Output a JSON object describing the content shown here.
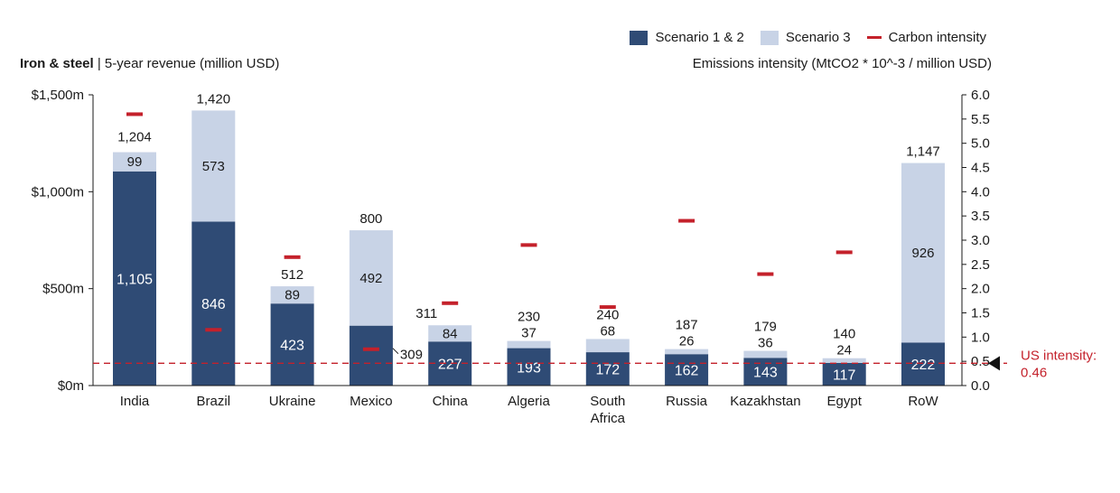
{
  "legend": {
    "s12_label": "Scenario 1 & 2",
    "s3_label": "Scenario 3",
    "carbon_label": "Carbon intensity"
  },
  "header": {
    "title_bold": "Iron & steel",
    "title_sep": " | ",
    "title_rest": "5-year revenue (million USD)",
    "right_axis_title": "Emissions intensity (MtCO2 * 10^-3 / million USD)"
  },
  "colors": {
    "s12": "#2f4b75",
    "s3": "#c8d3e6",
    "carbon": "#c4212b",
    "us_line": "#c4212b"
  },
  "chart_data": {
    "type": "bar",
    "stacked": true,
    "categories": [
      "India",
      "Brazil",
      "Ukraine",
      "Mexico",
      "China",
      "Algeria",
      "South Africa",
      "Russia",
      "Kazakhstan",
      "Egypt",
      "RoW"
    ],
    "category_lines": [
      [
        "India"
      ],
      [
        "Brazil"
      ],
      [
        "Ukraine"
      ],
      [
        "Mexico"
      ],
      [
        "China"
      ],
      [
        "Algeria"
      ],
      [
        "South",
        "Africa"
      ],
      [
        "Russia"
      ],
      [
        "Kazakhstan"
      ],
      [
        "Egypt"
      ],
      [
        "RoW"
      ]
    ],
    "series": [
      {
        "name": "Scenario 1 & 2",
        "values": [
          1105,
          846,
          423,
          309,
          227,
          193,
          172,
          162,
          143,
          117,
          222
        ],
        "labels": [
          "1,105",
          "846",
          "423",
          "309",
          "227",
          "193",
          "172",
          "162",
          "143",
          "117",
          "222"
        ]
      },
      {
        "name": "Scenario 3",
        "values": [
          99,
          573,
          89,
          492,
          84,
          37,
          68,
          26,
          36,
          24,
          926
        ],
        "labels": [
          "99",
          "573",
          "89",
          "492",
          "84",
          "37",
          "68",
          "26",
          "36",
          "24",
          "926"
        ]
      }
    ],
    "totals": [
      1204,
      1420,
      512,
      800,
      311,
      230,
      240,
      187,
      179,
      140,
      1147
    ],
    "total_labels": [
      "1,204",
      "1,420",
      "512",
      "800",
      "311",
      "230",
      "240",
      "187",
      "179",
      "140",
      "1,147"
    ],
    "carbon_intensity": {
      "name": "Carbon intensity",
      "values": [
        5.6,
        1.15,
        2.65,
        0.75,
        1.7,
        2.9,
        1.62,
        3.4,
        2.3,
        2.75,
        null
      ]
    },
    "left_axis": {
      "ylim": [
        0,
        1500
      ],
      "ticks": [
        0,
        500,
        1000,
        1500
      ],
      "tick_labels": [
        "$0m",
        "$500m",
        "$1,000m",
        "$1,500m"
      ]
    },
    "right_axis": {
      "ylim": [
        0,
        6.0
      ],
      "ticks": [
        0,
        0.5,
        1.0,
        1.5,
        2.0,
        2.5,
        3.0,
        3.5,
        4.0,
        4.5,
        5.0,
        5.5,
        6.0
      ],
      "tick_labels": [
        "0.0",
        "0.5",
        "1.0",
        "1.5",
        "2.0",
        "2.5",
        "3.0",
        "3.5",
        "4.0",
        "4.5",
        "5.0",
        "5.5",
        "6.0"
      ]
    },
    "reference_line": {
      "value": 0.46,
      "label_lines": [
        "US intensity:",
        "0.46"
      ]
    }
  }
}
